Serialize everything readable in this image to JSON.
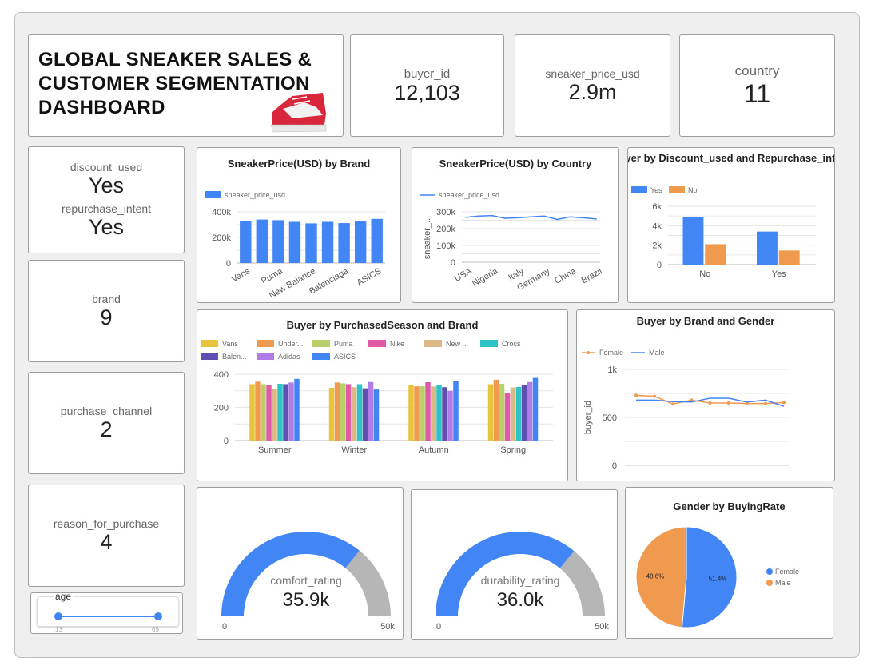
{
  "title": "GLOBAL SNEAKER SALES & CUSTOMER SEGMENTATION DASHBOARD",
  "kpis": {
    "buyer_id": {
      "label": "buyer_id",
      "value": "12,103"
    },
    "price": {
      "label": "sneaker_price_usd",
      "value": "2.9m"
    },
    "country": {
      "label": "country",
      "value": "11"
    },
    "discount": {
      "label": "discount_used",
      "value": "Yes"
    },
    "repurchase": {
      "label": "repurchase_intent",
      "value": "Yes"
    },
    "brand": {
      "label": "brand",
      "value": "9"
    },
    "channel": {
      "label": "purchase_channel",
      "value": "2"
    },
    "reason": {
      "label": "reason_for_purchase",
      "value": "4"
    }
  },
  "age_filter": {
    "label": "age",
    "min": "13",
    "max": "69"
  },
  "colors": {
    "blue": "#4285f4",
    "orange": "#ef9a4f",
    "gray": "#b7b6b7"
  },
  "chart_data": [
    {
      "id": "brand_bar",
      "type": "bar",
      "title": "SneakerPrice(USD) by Brand",
      "legend": "sneaker_price_usd",
      "categories": [
        "Vans",
        "",
        "Puma",
        "",
        "New Balance",
        "",
        "Balenciaga",
        "",
        "ASICS"
      ],
      "values": [
        330000,
        340000,
        335000,
        322000,
        310000,
        322000,
        312000,
        330000,
        345000
      ],
      "yticks": [
        "0",
        "200k",
        "400k"
      ],
      "ylim": [
        0,
        400000
      ],
      "grid": true,
      "legend_position": "top-left"
    },
    {
      "id": "country_line",
      "type": "line",
      "title": "SneakerPrice(USD) by Country",
      "legend": "sneaker_price_usd",
      "ylabel": "sneaker_...",
      "categories": [
        "USA",
        "",
        "Nigeria",
        "",
        "Italy",
        "",
        "Germany",
        "",
        "China",
        "",
        "Brazil"
      ],
      "values": [
        268000,
        275000,
        278000,
        262000,
        265000,
        270000,
        275000,
        255000,
        270000,
        265000,
        258000
      ],
      "yticks": [
        "0",
        "100k",
        "200k",
        "300k"
      ],
      "ylim": [
        0,
        300000
      ],
      "grid": true,
      "legend_position": "top-left"
    },
    {
      "id": "discount_bar",
      "type": "bar",
      "title": "Buyer by Discount_used and Repurchase_intent",
      "categories": [
        "No",
        "Yes"
      ],
      "series": [
        {
          "name": "Yes",
          "values": [
            4900,
            3400
          ]
        },
        {
          "name": "No",
          "values": [
            2100,
            1450
          ]
        }
      ],
      "yticks": [
        "0",
        "2k",
        "4k",
        "6k"
      ],
      "ylim": [
        0,
        6000
      ],
      "grid": true,
      "legend_position": "top-left"
    },
    {
      "id": "season_bar",
      "type": "bar",
      "title": "Buyer by PurchasedSeason and Brand",
      "categories": [
        "Summer",
        "Winter",
        "Autumn",
        "Spring"
      ],
      "series": [
        {
          "name": "Vans",
          "color": "#e8c43c",
          "values": [
            340,
            318,
            333,
            340
          ]
        },
        {
          "name": "Under...",
          "color": "#ef9a4f",
          "values": [
            355,
            350,
            327,
            367
          ]
        },
        {
          "name": "Puma",
          "color": "#b8cf6a",
          "values": [
            340,
            345,
            327,
            342
          ]
        },
        {
          "name": "Nike",
          "color": "#e05aa8",
          "values": [
            335,
            340,
            352,
            287
          ]
        },
        {
          "name": "New ...",
          "color": "#dbb885",
          "values": [
            310,
            322,
            326,
            320
          ]
        },
        {
          "name": "Crocs",
          "color": "#2ec4c6",
          "values": [
            342,
            340,
            334,
            323
          ]
        },
        {
          "name": "Balen...",
          "color": "#5e4fb0",
          "values": [
            340,
            315,
            322,
            337
          ]
        },
        {
          "name": "Adidas",
          "color": "#b07de6",
          "values": [
            350,
            353,
            300,
            353
          ]
        },
        {
          "name": "ASICS",
          "color": "#4285f4",
          "values": [
            372,
            308,
            357,
            378
          ]
        }
      ],
      "yticks": [
        "0",
        "200",
        "400"
      ],
      "ylim": [
        0,
        400
      ],
      "grid": true,
      "legend_position": "top"
    },
    {
      "id": "gender_line",
      "type": "line",
      "title": "Buyer by Brand and Gender",
      "ylabel": "buyer_id",
      "series": [
        {
          "name": "Female",
          "color": "#ef9a4f",
          "values": [
            730,
            720,
            640,
            680,
            650,
            650,
            645,
            645,
            655
          ]
        },
        {
          "name": "Male",
          "color": "#4285f4",
          "values": [
            680,
            680,
            665,
            660,
            700,
            700,
            660,
            680,
            615
          ]
        }
      ],
      "yticks": [
        "0",
        "500",
        "1k"
      ],
      "ylim": [
        0,
        1000
      ],
      "grid": true,
      "legend_position": "top-left"
    },
    {
      "id": "comfort_gauge",
      "type": "gauge",
      "label": "comfort_rating",
      "value": 35900,
      "value_text": "35.9k",
      "min": "0",
      "max": "50k",
      "max_value": 50000
    },
    {
      "id": "durability_gauge",
      "type": "gauge",
      "label": "durability_rating",
      "value": 36000,
      "value_text": "36.0k",
      "min": "0",
      "max": "50k",
      "max_value": 50000
    },
    {
      "id": "gender_pie",
      "type": "pie",
      "title": "Gender by BuyingRate",
      "slices": [
        {
          "name": "Female",
          "value": 51.4,
          "label": "51.4%",
          "color": "#4285f4"
        },
        {
          "name": "Male",
          "value": 48.6,
          "label": "48.6%",
          "color": "#ef9a4f"
        }
      ],
      "legend_position": "right"
    }
  ]
}
